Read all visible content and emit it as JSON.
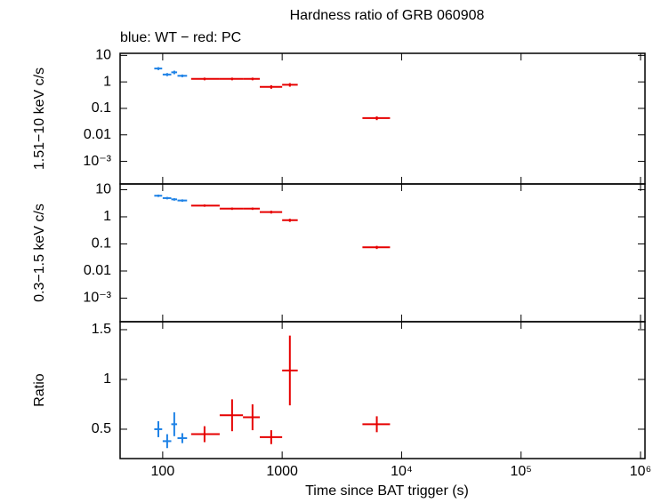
{
  "chart_data": [
    {
      "type": "errorbar",
      "title": "Hardness ratio of GRB 060908",
      "subtitle": "blue: WT − red: PC",
      "y_label": "1.51−10 keV c/s",
      "xlog": true,
      "ylog": true,
      "xlim": [
        44,
        1090000
      ],
      "ylim": [
        0.00014,
        12
      ],
      "yticks": [
        10,
        1,
        0.1,
        0.01,
        {
          "value": 0.001,
          "label": "10⁻³"
        }
      ],
      "series": [
        {
          "color": "#1e82e6",
          "x": [
            92,
            109,
            125,
            146
          ],
          "x_low": [
            85,
            100,
            118,
            133
          ],
          "x_high": [
            99,
            118,
            132,
            160
          ],
          "values": [
            3.2,
            1.9,
            2.3,
            1.7
          ],
          "errors": [
            0.4,
            0.25,
            0.35,
            0.2
          ]
        },
        {
          "color": "#e60000",
          "x": [
            224,
            381,
            565,
            810,
            1160,
            6200
          ],
          "x_low": [
            173,
            300,
            470,
            650,
            1000,
            4700
          ],
          "x_high": [
            300,
            470,
            650,
            1000,
            1350,
            8000
          ],
          "values": [
            1.3,
            1.3,
            1.3,
            0.65,
            0.78,
            0.043
          ],
          "errors": [
            0.15,
            0.15,
            0.15,
            0.1,
            0.12,
            0.007
          ]
        }
      ]
    },
    {
      "type": "errorbar",
      "y_label": "0.3−1.5 keV c/s",
      "xlog": true,
      "ylog": true,
      "xlim": [
        44,
        1090000
      ],
      "ylim": [
        0.000135,
        16.3
      ],
      "yticks": [
        10,
        1,
        0.1,
        0.01,
        {
          "value": 0.001,
          "label": "10⁻³"
        }
      ],
      "series": [
        {
          "color": "#1e82e6",
          "x": [
            92,
            109,
            125,
            146
          ],
          "x_low": [
            85,
            100,
            118,
            133
          ],
          "x_high": [
            99,
            118,
            132,
            160
          ],
          "values": [
            6,
            4.9,
            4.4,
            4.0
          ],
          "errors": [
            0.6,
            0.5,
            0.45,
            0.4
          ]
        },
        {
          "color": "#e60000",
          "x": [
            224,
            381,
            565,
            810,
            1160,
            6200
          ],
          "x_low": [
            173,
            300,
            470,
            650,
            1000,
            4700
          ],
          "x_high": [
            300,
            470,
            650,
            1000,
            1350,
            8000
          ],
          "values": [
            2.6,
            2.0,
            2.0,
            1.5,
            0.75,
            0.075
          ],
          "errors": [
            0.25,
            0.2,
            0.2,
            0.18,
            0.1,
            0.01
          ]
        }
      ]
    },
    {
      "type": "errorbar",
      "y_label": "Ratio",
      "x_label": "Time since BAT trigger (s)",
      "xlog": true,
      "ylog": false,
      "xlim": [
        44,
        1090000
      ],
      "ylim": [
        0.205,
        1.58
      ],
      "yticks": [
        1.5,
        1,
        0.5
      ],
      "xticks": [
        100,
        1000,
        {
          "value": 10000,
          "label": "10⁴"
        },
        {
          "value": 100000,
          "label": "10⁵"
        },
        {
          "value": 1000000,
          "label": "10⁶"
        }
      ],
      "series": [
        {
          "color": "#1e82e6",
          "x": [
            92,
            109,
            125,
            146
          ],
          "x_low": [
            85,
            100,
            118,
            133
          ],
          "x_high": [
            99,
            118,
            132,
            160
          ],
          "values": [
            0.5,
            0.38,
            0.55,
            0.41
          ],
          "errors": [
            0.08,
            0.07,
            0.12,
            0.05
          ]
        },
        {
          "color": "#e60000",
          "x": [
            224,
            381,
            565,
            810,
            1160,
            6200
          ],
          "x_low": [
            173,
            300,
            470,
            650,
            1000,
            4700
          ],
          "x_high": [
            300,
            470,
            650,
            1000,
            1350,
            8000
          ],
          "values": [
            0.45,
            0.64,
            0.62,
            0.42,
            1.09,
            0.55
          ],
          "errors": [
            0.08,
            0.16,
            0.13,
            0.07,
            0.35,
            0.08
          ]
        }
      ]
    }
  ]
}
